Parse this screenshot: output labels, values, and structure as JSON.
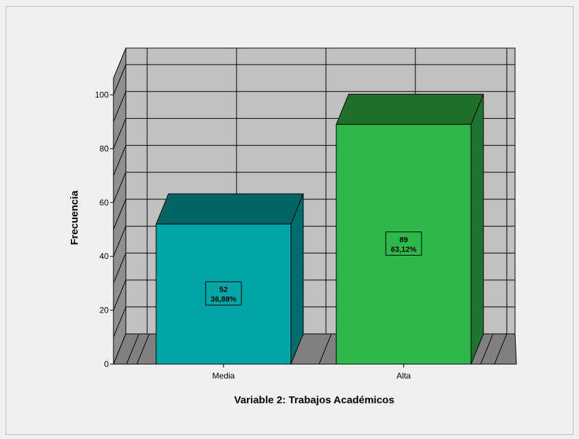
{
  "chart_data": {
    "type": "bar",
    "categories": [
      "Media",
      "Alta"
    ],
    "values": [
      52,
      89
    ],
    "percentages": [
      "36,88%",
      "63,12%"
    ],
    "data_labels": [
      "52",
      "89"
    ],
    "xlabel": "Variable 2: Trabajos Académicos",
    "ylabel": "Frecuencia",
    "ylim": [
      0,
      117
    ],
    "yticks": [
      "0",
      "20",
      "40",
      "60",
      "80",
      "100"
    ],
    "ytick_values": [
      0,
      20,
      40,
      60,
      80,
      100
    ],
    "three_d": true,
    "grid": true,
    "colors": {
      "bars": [
        {
          "front": "#00a5a5",
          "top": "#006464",
          "side": "#006c6c"
        },
        {
          "front": "#2fb84a",
          "top": "#1f6f2b",
          "side": "#1e7330"
        }
      ],
      "wall": "#c0c0c0",
      "floor": "#808080",
      "side_wall": "#8f8f8f",
      "grid": "#000000"
    }
  }
}
